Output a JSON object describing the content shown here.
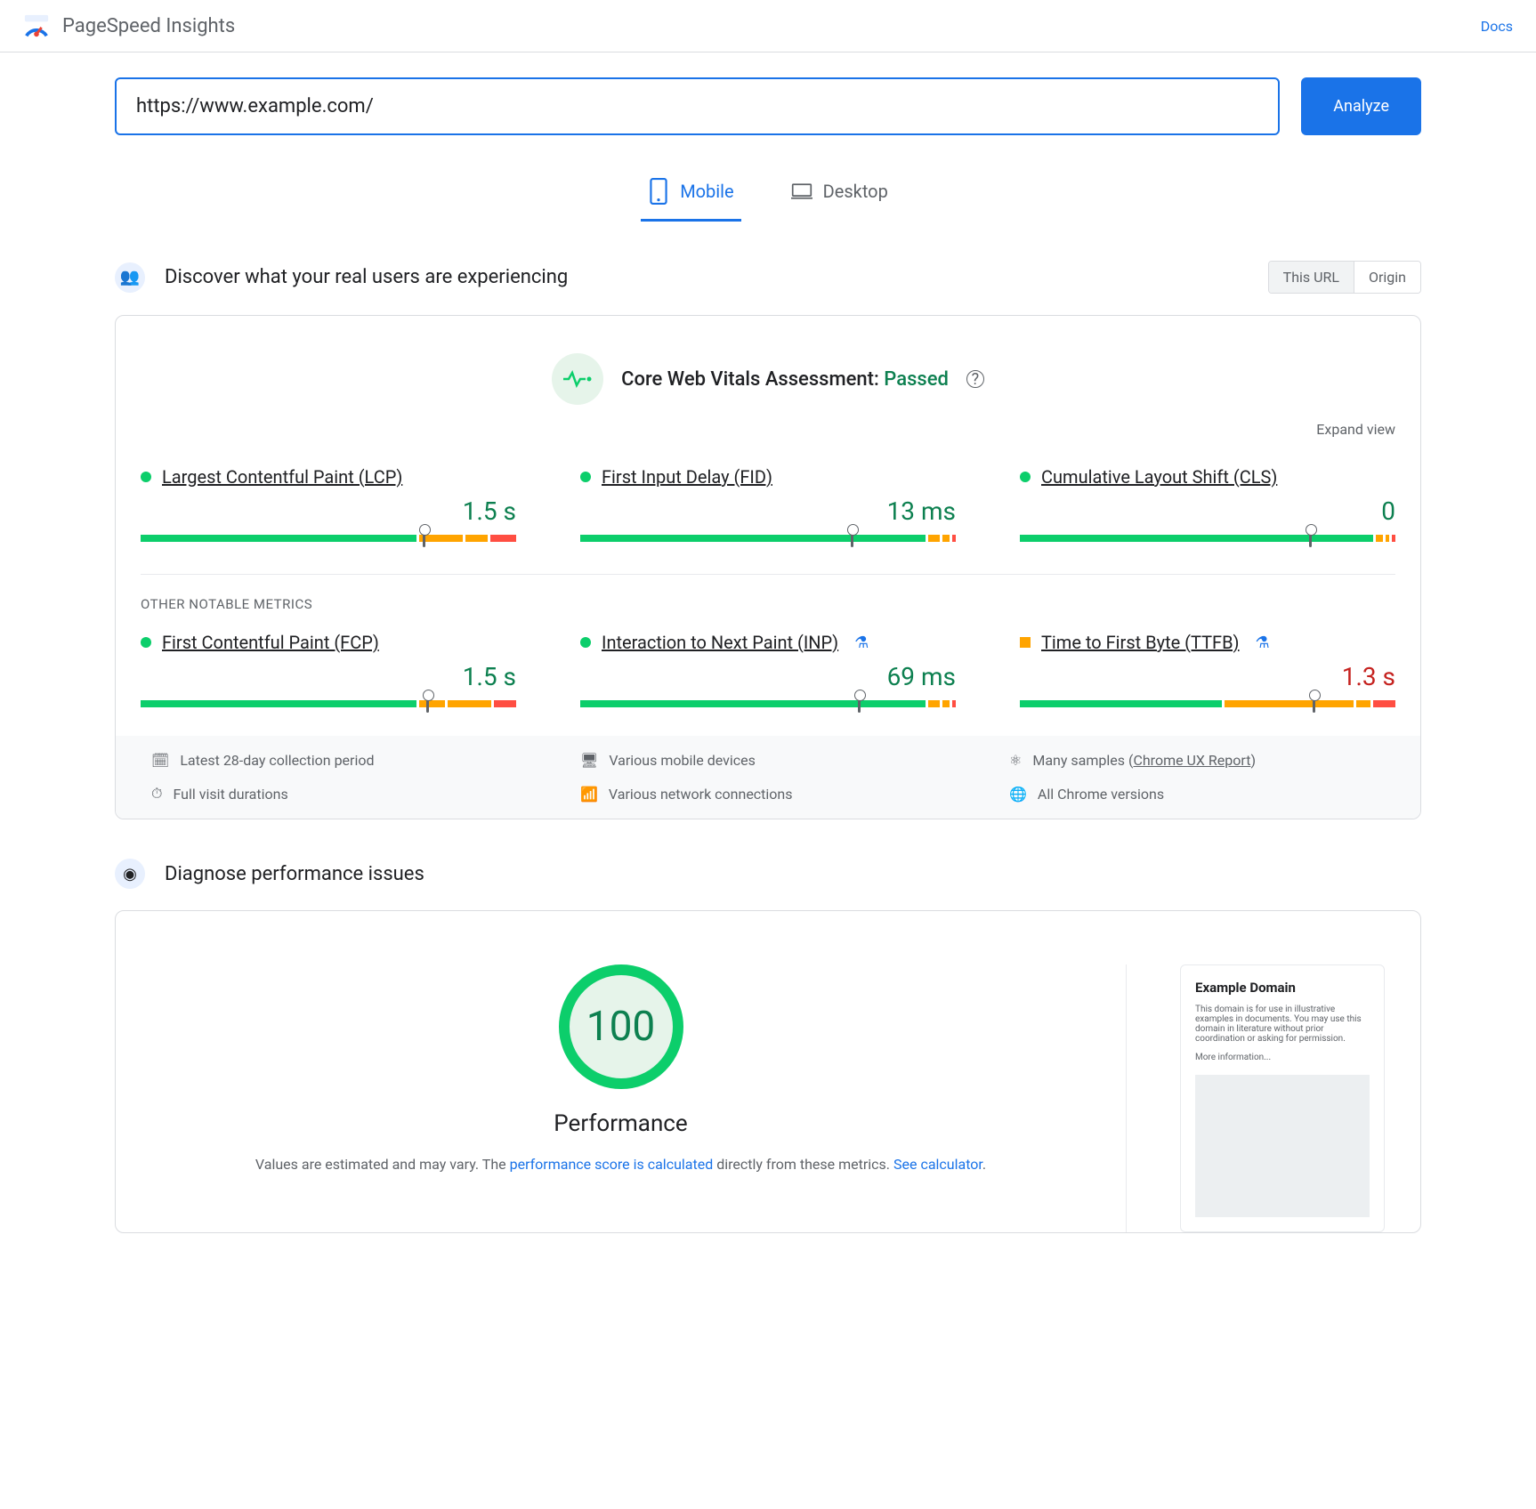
{
  "header": {
    "brand": "PageSpeed Insights",
    "docs": "Docs"
  },
  "search": {
    "url": "https://www.example.com/",
    "analyze": "Analyze"
  },
  "tabs": {
    "mobile": "Mobile",
    "desktop": "Desktop"
  },
  "discover": {
    "title": "Discover what your real users are experiencing",
    "toggle_url": "This URL",
    "toggle_origin": "Origin",
    "assessment_label": "Core Web Vitals Assessment: ",
    "assessment_status": "Passed",
    "expand": "Expand view",
    "other_label": "OTHER NOTABLE METRICS",
    "metrics_top": [
      {
        "name": "Largest Contentful Paint (LCP)",
        "value": "1.5 s",
        "status": "good",
        "dot": "green",
        "segments": [
          75,
          12,
          6,
          7
        ],
        "marker": 75
      },
      {
        "name": "First Input Delay (FID)",
        "value": "13 ms",
        "status": "good",
        "dot": "green",
        "segments": [
          94,
          3,
          2,
          1
        ],
        "marker": 72
      },
      {
        "name": "Cumulative Layout Shift (CLS)",
        "value": "0",
        "status": "good",
        "dot": "green",
        "segments": [
          96,
          2,
          1,
          1
        ],
        "marker": 77
      }
    ],
    "metrics_other": [
      {
        "name": "First Contentful Paint (FCP)",
        "value": "1.5 s",
        "status": "good",
        "dot": "green",
        "flask": false,
        "segments": [
          75,
          7,
          12,
          6
        ],
        "marker": 76
      },
      {
        "name": "Interaction to Next Paint (INP)",
        "value": "69 ms",
        "status": "good",
        "dot": "green",
        "flask": true,
        "segments": [
          94,
          3,
          2,
          1
        ],
        "marker": 74
      },
      {
        "name": "Time to First Byte (TTFB)",
        "value": "1.3 s",
        "status": "warn",
        "dot": "amber",
        "flask": true,
        "segments": [
          55,
          35,
          4,
          6
        ],
        "marker": 78
      }
    ],
    "info": [
      {
        "icon": "calendar",
        "text": "Latest 28-day collection period"
      },
      {
        "icon": "devices",
        "text": "Various mobile devices"
      },
      {
        "icon": "samples",
        "text": "Many samples (",
        "link": "Chrome UX Report",
        "after": ")"
      },
      {
        "icon": "timer",
        "text": "Full visit durations"
      },
      {
        "icon": "network",
        "text": "Various network connections"
      },
      {
        "icon": "chrome",
        "text": "All Chrome versions"
      }
    ]
  },
  "diagnose": {
    "title": "Diagnose performance issues",
    "score": "100",
    "label": "Performance",
    "desc1": "Values are estimated and may vary. The ",
    "link1": "performance score is calculated",
    "desc2": " directly from these metrics. ",
    "link2": "See calculator",
    "desc3": ".",
    "preview_title": "Example Domain",
    "preview_body": "This domain is for use in illustrative examples in documents. You may use this domain in literature without prior coordination or asking for permission.",
    "preview_more": "More information..."
  },
  "colors": {
    "good": "#0cce6b",
    "warn": "#ffa400",
    "bad": "#ff4e42",
    "good_text": "#0d8050",
    "warn_text": "#c5221f",
    "primary": "#1a73e8"
  }
}
